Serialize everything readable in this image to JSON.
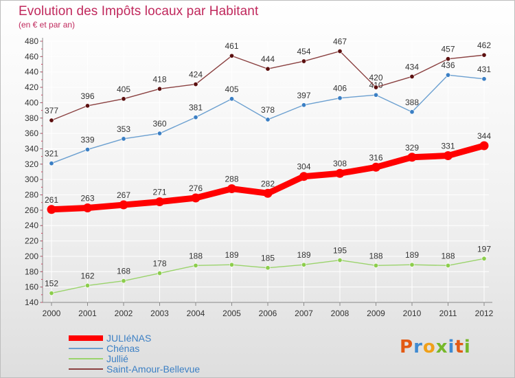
{
  "header": {
    "title": "Evolution des Impôts locaux par Habitant",
    "subtitle": "(en € et par an)"
  },
  "logo": {
    "letters": [
      "P",
      "r",
      "o",
      "x",
      "i",
      "t",
      "i"
    ],
    "colors": [
      "#e35a14",
      "#3f8ad1",
      "#f0a019",
      "#76b82a",
      "#3f8ad1",
      "#e35a14",
      "#76b82a"
    ]
  },
  "chart_data": {
    "type": "line",
    "x": [
      "2000",
      "2001",
      "2002",
      "2003",
      "2004",
      "2005",
      "2006",
      "2007",
      "2008",
      "2009",
      "2010",
      "2011",
      "2012"
    ],
    "ylim": [
      140,
      480
    ],
    "yticks": [
      140,
      160,
      180,
      200,
      220,
      240,
      260,
      280,
      300,
      320,
      340,
      360,
      380,
      400,
      420,
      440,
      460,
      480
    ],
    "grid": true,
    "legend_position": "bottom-left",
    "series": [
      {
        "name": "JULIéNAS",
        "values": [
          261,
          263,
          267,
          271,
          276,
          288,
          282,
          304,
          308,
          316,
          329,
          331,
          344
        ],
        "color": "#ff0000",
        "emphasis": true
      },
      {
        "name": "Chénas",
        "values": [
          321,
          339,
          353,
          360,
          381,
          405,
          378,
          397,
          406,
          410,
          388,
          436,
          431
        ],
        "color": "#6a9fd0",
        "marker": "#3b7fc4"
      },
      {
        "name": "Jullié",
        "values": [
          152,
          162,
          168,
          178,
          188,
          189,
          185,
          189,
          195,
          188,
          189,
          188,
          197
        ],
        "color": "#9ad36b",
        "marker": "#8ccd4c"
      },
      {
        "name": "Saint-Amour-Bellevue",
        "values": [
          377,
          396,
          405,
          418,
          424,
          461,
          444,
          454,
          467,
          420,
          434,
          457,
          462
        ],
        "color": "#8a4040",
        "marker": "#5c1010"
      }
    ]
  }
}
